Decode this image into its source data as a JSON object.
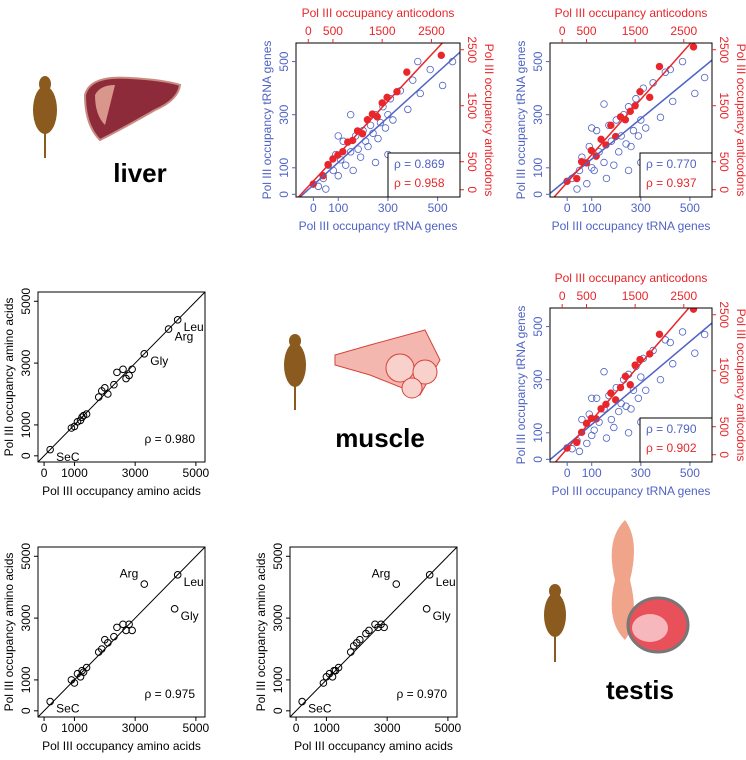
{
  "tissues": [
    "liver",
    "muscle",
    "testis"
  ],
  "chart_data": [
    {
      "type": "scatter",
      "xlabel": "Pol III occupancy tRNA genes",
      "ylabel": "Pol III occupancy tRNA genes",
      "x2label": "Pol III occupancy anticodons",
      "y2label": "Pol III occupancy anticodons",
      "xlim": [
        -70,
        590
      ],
      "xticks": [
        0,
        100,
        300,
        500
      ],
      "ylim": [
        -10,
        570
      ],
      "yticks": [
        0,
        100,
        300,
        500
      ],
      "x2lim": [
        -250,
        3080
      ],
      "x2ticks": [
        0,
        500,
        1500,
        2500
      ],
      "y2lim": [
        -130,
        2620
      ],
      "y2ticks": [
        0,
        500,
        1500,
        2500
      ],
      "series": [
        {
          "color": "#4f63c4",
          "marker": "open",
          "x": [
            20,
            40,
            50,
            60,
            80,
            90,
            100,
            110,
            120,
            130,
            150,
            160,
            170,
            180,
            190,
            200,
            210,
            220,
            230,
            240,
            250,
            260,
            270,
            280,
            290,
            300,
            310,
            320,
            350,
            380,
            400,
            430,
            470,
            520,
            560,
            150,
            300,
            420,
            100,
            250
          ],
          "values": [
            30,
            60,
            20,
            110,
            90,
            150,
            70,
            130,
            200,
            110,
            160,
            90,
            220,
            170,
            140,
            240,
            200,
            180,
            260,
            230,
            300,
            210,
            270,
            330,
            250,
            300,
            360,
            280,
            390,
            320,
            430,
            380,
            470,
            410,
            500,
            300,
            150,
            500,
            220,
            120
          ]
        },
        {
          "color": "#e8262b",
          "marker": "filled",
          "axis": "y2",
          "xaxis": "x2",
          "x": [
            100,
            300,
            400,
            500,
            600,
            700,
            800,
            900,
            1000,
            1100,
            1200,
            1300,
            1400,
            1500,
            1600,
            1800,
            2000,
            2700
          ],
          "values": [
            100,
            250,
            450,
            550,
            620,
            680,
            850,
            880,
            1050,
            1000,
            1250,
            1350,
            1300,
            1550,
            1650,
            1750,
            2100,
            2400
          ]
        }
      ],
      "annotations": [
        {
          "text": "ρ = 0.869",
          "color": "#4f63c4"
        },
        {
          "text": "ρ = 0.958",
          "color": "#e8262b"
        }
      ]
    },
    {
      "type": "scatter",
      "xlabel": "Pol III occupancy tRNA genes",
      "ylabel": "Pol III occupancy tRNA genes",
      "x2label": "Pol III occupancy anticodons",
      "y2label": "Pol III occupancy anticodons",
      "xlim": [
        -70,
        590
      ],
      "xticks": [
        0,
        100,
        300,
        500
      ],
      "ylim": [
        -10,
        570
      ],
      "yticks": [
        0,
        100,
        300,
        500
      ],
      "x2lim": [
        -250,
        3080
      ],
      "x2ticks": [
        0,
        500,
        1500,
        2500
      ],
      "y2lim": [
        -130,
        2620
      ],
      "y2ticks": [
        0,
        500,
        1500,
        2500
      ],
      "series": [
        {
          "color": "#4f63c4",
          "marker": "open",
          "x": [
            20,
            40,
            50,
            60,
            80,
            90,
            100,
            110,
            120,
            130,
            150,
            160,
            170,
            180,
            190,
            200,
            210,
            220,
            230,
            240,
            250,
            260,
            270,
            280,
            290,
            300,
            310,
            320,
            350,
            380,
            400,
            430,
            470,
            520,
            560,
            150,
            300,
            420,
            100,
            250
          ],
          "values": [
            60,
            20,
            90,
            140,
            40,
            180,
            100,
            90,
            240,
            160,
            120,
            60,
            260,
            200,
            110,
            280,
            160,
            220,
            300,
            190,
            330,
            180,
            240,
            360,
            220,
            280,
            400,
            250,
            420,
            290,
            460,
            350,
            500,
            380,
            440,
            340,
            120,
            470,
            250,
            90
          ]
        },
        {
          "color": "#e8262b",
          "marker": "filled",
          "axis": "y2",
          "xaxis": "x2",
          "x": [
            100,
            300,
            400,
            500,
            600,
            700,
            800,
            900,
            1000,
            1100,
            1200,
            1300,
            1400,
            1500,
            1600,
            1800,
            2000,
            2700
          ],
          "values": [
            150,
            200,
            500,
            480,
            700,
            600,
            900,
            800,
            1150,
            950,
            1300,
            1250,
            1400,
            1500,
            1750,
            1650,
            2200,
            2550
          ]
        }
      ],
      "annotations": [
        {
          "text": "ρ = 0.770",
          "color": "#4f63c4"
        },
        {
          "text": "ρ = 0.937",
          "color": "#e8262b"
        }
      ]
    },
    {
      "type": "aa-scatter",
      "xlabel": "Pol III occupancy amino acids",
      "ylabel": "Pol III occupancy amino acids",
      "xlim": [
        -200,
        5300
      ],
      "xticks": [
        0,
        1000,
        3000,
        5000
      ],
      "ylim": [
        -200,
        5300
      ],
      "yticks": [
        0,
        1000,
        3000,
        5000
      ],
      "x": [
        200,
        900,
        1000,
        1100,
        1200,
        1250,
        1300,
        1400,
        1800,
        1900,
        2000,
        2100,
        2300,
        2400,
        2600,
        2700,
        2800,
        2900,
        3300,
        4100,
        4400
      ],
      "values": [
        200,
        900,
        950,
        1100,
        1150,
        1250,
        1300,
        1350,
        1900,
        2100,
        2200,
        2000,
        2300,
        2700,
        2800,
        2500,
        2600,
        2800,
        3300,
        4100,
        4400
      ],
      "labels": [
        "SeC",
        null,
        null,
        null,
        null,
        null,
        null,
        null,
        null,
        null,
        null,
        null,
        null,
        null,
        null,
        null,
        null,
        null,
        "Gly",
        "Arg",
        "Leu"
      ],
      "annotation": "ρ = 0.980"
    },
    {
      "type": "scatter",
      "xlabel": "Pol III occupancy tRNA genes",
      "ylabel": "Pol III occupancy tRNA genes",
      "x2label": "Pol III occupancy anticodons",
      "y2label": "Pol III occupancy anticodons",
      "xlim": [
        -70,
        590
      ],
      "xticks": [
        0,
        100,
        300,
        500
      ],
      "ylim": [
        -10,
        570
      ],
      "yticks": [
        0,
        100,
        300,
        500
      ],
      "x2lim": [
        -250,
        3080
      ],
      "x2ticks": [
        0,
        500,
        1500,
        2500
      ],
      "y2lim": [
        -130,
        2620
      ],
      "y2ticks": [
        0,
        500,
        1500,
        2500
      ],
      "series": [
        {
          "color": "#4f63c4",
          "marker": "open",
          "x": [
            20,
            40,
            50,
            60,
            80,
            90,
            100,
            110,
            120,
            130,
            150,
            160,
            170,
            180,
            190,
            200,
            210,
            220,
            230,
            240,
            250,
            260,
            270,
            280,
            290,
            300,
            310,
            320,
            350,
            380,
            400,
            430,
            470,
            520,
            560,
            150,
            300,
            420,
            100,
            250
          ],
          "values": [
            40,
            70,
            30,
            150,
            60,
            170,
            90,
            110,
            230,
            140,
            190,
            80,
            240,
            150,
            120,
            270,
            180,
            210,
            300,
            200,
            320,
            190,
            260,
            350,
            230,
            310,
            380,
            260,
            410,
            300,
            450,
            360,
            480,
            400,
            470,
            330,
            140,
            440,
            230,
            100
          ]
        },
        {
          "color": "#e8262b",
          "marker": "filled",
          "axis": "y2",
          "xaxis": "x2",
          "x": [
            100,
            300,
            400,
            500,
            600,
            700,
            800,
            900,
            1000,
            1100,
            1200,
            1300,
            1400,
            1500,
            1600,
            1800,
            2000,
            2700
          ],
          "values": [
            120,
            220,
            400,
            560,
            650,
            640,
            820,
            900,
            1100,
            980,
            1200,
            1400,
            1250,
            1600,
            1700,
            1800,
            2150,
            2600
          ]
        }
      ],
      "annotations": [
        {
          "text": "ρ = 0.790",
          "color": "#4f63c4"
        },
        {
          "text": "ρ = 0.902",
          "color": "#e8262b"
        }
      ]
    },
    {
      "type": "aa-scatter",
      "xlabel": "Pol III occupancy amino acids",
      "ylabel": "Pol III occupancy amino acids",
      "xlim": [
        -200,
        5300
      ],
      "xticks": [
        0,
        1000,
        3000,
        5000
      ],
      "ylim": [
        -200,
        5300
      ],
      "yticks": [
        0,
        1000,
        3000,
        5000
      ],
      "x": [
        200,
        900,
        1000,
        1100,
        1200,
        1250,
        1300,
        1400,
        1800,
        1900,
        2000,
        2100,
        2300,
        2400,
        2600,
        2700,
        2800,
        2900,
        3300,
        4300,
        4400
      ],
      "values": [
        300,
        1000,
        900,
        1200,
        1100,
        1300,
        1250,
        1400,
        1900,
        2000,
        2300,
        2200,
        2400,
        2700,
        2800,
        2600,
        2800,
        2600,
        4100,
        3300,
        4400
      ],
      "labels": [
        "SeC",
        null,
        null,
        null,
        null,
        null,
        null,
        null,
        null,
        null,
        null,
        null,
        null,
        null,
        null,
        null,
        null,
        null,
        "Arg",
        "Gly",
        "Leu"
      ],
      "annotation": "ρ = 0.975"
    },
    {
      "type": "aa-scatter",
      "xlabel": "Pol III occupancy amino acids",
      "ylabel": "Pol III occupancy amino acids",
      "xlim": [
        -200,
        5300
      ],
      "xticks": [
        0,
        1000,
        3000,
        5000
      ],
      "ylim": [
        -200,
        5300
      ],
      "yticks": [
        0,
        1000,
        3000,
        5000
      ],
      "x": [
        200,
        900,
        1000,
        1100,
        1200,
        1250,
        1300,
        1400,
        1800,
        1900,
        2000,
        2100,
        2300,
        2400,
        2600,
        2700,
        2800,
        2900,
        3300,
        4300,
        4400
      ],
      "values": [
        300,
        900,
        1100,
        1200,
        1100,
        1300,
        1300,
        1400,
        1900,
        2100,
        2200,
        2300,
        2500,
        2600,
        2800,
        2700,
        2800,
        2700,
        4100,
        3300,
        4400
      ],
      "labels": [
        "SeC",
        null,
        null,
        null,
        null,
        null,
        null,
        null,
        null,
        null,
        null,
        null,
        null,
        null,
        null,
        null,
        null,
        null,
        "Arg",
        "Gly",
        "Leu"
      ],
      "annotation": "ρ = 0.970"
    }
  ]
}
